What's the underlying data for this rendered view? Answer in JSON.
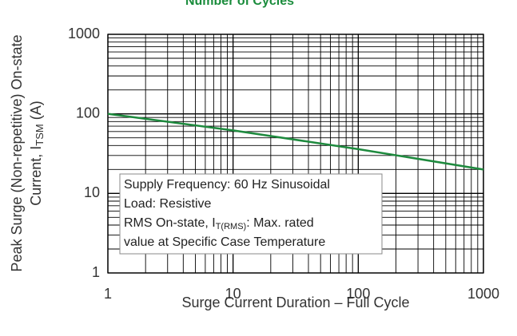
{
  "chart_data": {
    "type": "line",
    "title": "Number of Cycles",
    "title_color": "#1a8c3c",
    "xlabel": "Surge Current Duration – Full Cycle",
    "ylabel": {
      "line1": "Peak Surge (Non-repetitive) On-state",
      "line2": "Current, I",
      "line2_sub": "TSM",
      "line2_end": " (A)"
    },
    "x": [
      1,
      10,
      100,
      1000
    ],
    "series": [
      {
        "name": "ITSM",
        "color": "#1e8a3e",
        "values": [
          100,
          62,
          36,
          20
        ]
      }
    ],
    "xlim": [
      1,
      1000
    ],
    "ylim": [
      1,
      1000
    ],
    "xticks": [
      1,
      10,
      100,
      1000
    ],
    "yticks": [
      1,
      10,
      100,
      1000
    ],
    "xscale": "log",
    "yscale": "log",
    "grid": true,
    "annotation": {
      "line1": "Supply Frequency: 60 Hz Sinusoidal",
      "line2": "Load: Resistive",
      "line3": "RMS On-state, I",
      "line3_sub": "T(RMS)",
      "line3_end": ": Max. rated",
      "line4": "value at Specific Case Temperature"
    }
  }
}
